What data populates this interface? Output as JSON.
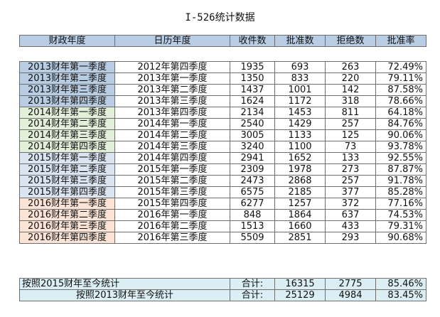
{
  "title": "I-526统计数据",
  "columns": [
    "财政年度",
    "日历年度",
    "收件数",
    "批准数",
    "拒绝数",
    "批准率"
  ],
  "rows": [
    {
      "fy": "2013财年第一季度",
      "cy": "2012年第四季度",
      "received": "1935",
      "approved": "693",
      "denied": "263",
      "rate": "72.49%",
      "group": "2013"
    },
    {
      "fy": "2013财年第二季度",
      "cy": "2013年第一季度",
      "received": "1350",
      "approved": "833",
      "denied": "220",
      "rate": "79.11%",
      "group": "2013"
    },
    {
      "fy": "2013财年第三季度",
      "cy": "2013年第二季度",
      "received": "1437",
      "approved": "1001",
      "denied": "142",
      "rate": "87.58%",
      "group": "2013"
    },
    {
      "fy": "2013财年第四季度",
      "cy": "2013年第三季度",
      "received": "1624",
      "approved": "1172",
      "denied": "318",
      "rate": "78.66%",
      "group": "2013"
    },
    {
      "fy": "2014财年第一季度",
      "cy": "2013年第四季度",
      "received": "2134",
      "approved": "1453",
      "denied": "811",
      "rate": "64.18%",
      "group": "2014"
    },
    {
      "fy": "2014财年第二季度",
      "cy": "2014年第一季度",
      "received": "2540",
      "approved": "1429",
      "denied": "257",
      "rate": "84.76%",
      "group": "2014"
    },
    {
      "fy": "2014财年第三季度",
      "cy": "2014年第二季度",
      "received": "3005",
      "approved": "1133",
      "denied": "125",
      "rate": "90.06%",
      "group": "2014"
    },
    {
      "fy": "2014财年第四季度",
      "cy": "2014年第三季度",
      "received": "3240",
      "approved": "1100",
      "denied": "73",
      "rate": "93.78%",
      "group": "2014"
    },
    {
      "fy": "2015财年第一季度",
      "cy": "2014年第四季度",
      "received": "2941",
      "approved": "1652",
      "denied": "133",
      "rate": "92.55%",
      "group": "2015"
    },
    {
      "fy": "2015财年第二季度",
      "cy": "2015年第一季度",
      "received": "2309",
      "approved": "1978",
      "denied": "273",
      "rate": "87.87%",
      "group": "2015"
    },
    {
      "fy": "2015财年第三季度",
      "cy": "2015年第二季度",
      "received": "2473",
      "approved": "2868",
      "denied": "257",
      "rate": "91.78%",
      "group": "2015"
    },
    {
      "fy": "2015财年第四季度",
      "cy": "2015年第三季度",
      "received": "6575",
      "approved": "2185",
      "denied": "377",
      "rate": "85.28%",
      "group": "2015"
    },
    {
      "fy": "2016财年第一季度",
      "cy": "2015年第四季度",
      "received": "6277",
      "approved": "1257",
      "denied": "372",
      "rate": "77.16%",
      "group": "2016"
    },
    {
      "fy": "2016财年第二季度",
      "cy": "2016年第一季度",
      "received": "848",
      "approved": "1864",
      "denied": "637",
      "rate": "74.53%",
      "group": "2016"
    },
    {
      "fy": "2016财年第三季度",
      "cy": "2016年第二季度",
      "received": "1513",
      "approved": "1660",
      "denied": "433",
      "rate": "79.31%",
      "group": "2016"
    },
    {
      "fy": "2016财年第四季度",
      "cy": "2016年第三季度",
      "received": "5509",
      "approved": "2851",
      "denied": "293",
      "rate": "90.68%",
      "group": "2016"
    }
  ],
  "summary": [
    {
      "label": "按照2015财年至今统计",
      "total_label": "合计:",
      "received": "16315",
      "approved": "2775",
      "rate": "85.46%",
      "align": "left"
    },
    {
      "label": "按照2013财年至今统计",
      "total_label": "合计:",
      "received": "25129",
      "approved": "4984",
      "rate": "83.45%",
      "align": "center"
    }
  ],
  "colors": {
    "header": "#b8cce4",
    "fy2013": "#b8cce4",
    "fy2014": "#e2efd9",
    "fy2015": "#dbe5f1",
    "fy2016": "#fbe4d5",
    "summary": "#daeef3"
  }
}
